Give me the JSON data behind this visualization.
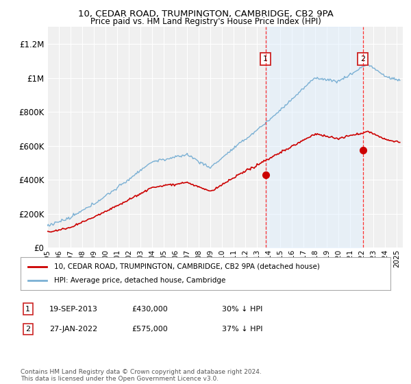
{
  "title1": "10, CEDAR ROAD, TRUMPINGTON, CAMBRIDGE, CB2 9PA",
  "title2": "Price paid vs. HM Land Registry's House Price Index (HPI)",
  "ylabel_ticks": [
    "£0",
    "£200K",
    "£400K",
    "£600K",
    "£800K",
    "£1M",
    "£1.2M"
  ],
  "ytick_values": [
    0,
    200000,
    400000,
    600000,
    800000,
    1000000,
    1200000
  ],
  "ylim": [
    0,
    1300000
  ],
  "xlim_start": 1995.0,
  "xlim_end": 2025.5,
  "sale1_date": 2013.72,
  "sale1_price": 430000,
  "sale2_date": 2022.08,
  "sale2_price": 575000,
  "line_color_property": "#cc0000",
  "line_color_hpi": "#7ab0d4",
  "fill_color_hpi": "#ddeeff",
  "legend_label1": "10, CEDAR ROAD, TRUMPINGTON, CAMBRIDGE, CB2 9PA (detached house)",
  "legend_label2": "HPI: Average price, detached house, Cambridge",
  "annotation1_label": "1",
  "annotation1_date": "19-SEP-2013",
  "annotation1_price": "£430,000",
  "annotation1_pct": "30% ↓ HPI",
  "annotation2_label": "2",
  "annotation2_date": "27-JAN-2022",
  "annotation2_price": "£575,000",
  "annotation2_pct": "37% ↓ HPI",
  "footnote": "Contains HM Land Registry data © Crown copyright and database right 2024.\nThis data is licensed under the Open Government Licence v3.0.",
  "background_color": "#ffffff",
  "plot_bg_color": "#f0f0f0",
  "grid_color": "#ffffff"
}
